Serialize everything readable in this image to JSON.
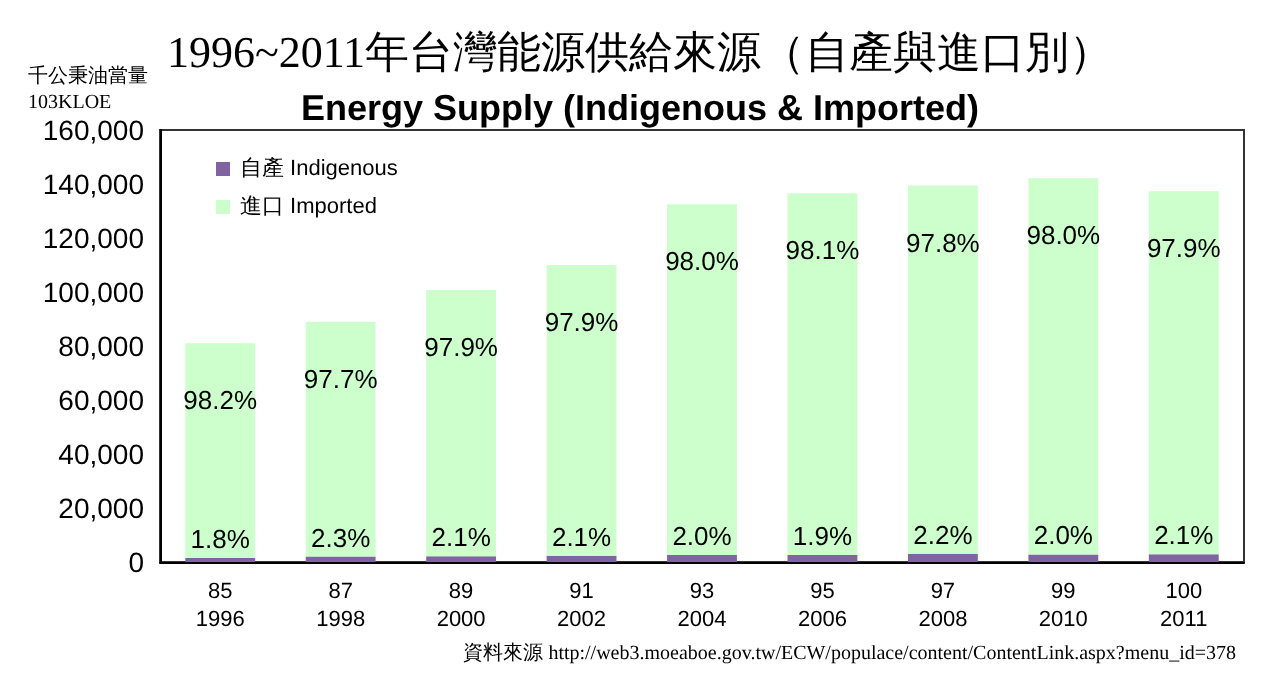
{
  "chart_data": {
    "type": "bar",
    "title": "1996~2011年台灣能源供給來源（自產與進口別）",
    "subtitle": "Energy Supply (Indigenous & Imported)",
    "ylabel": "千公秉油當量\n103KLOE",
    "categories": [
      "85\n1996",
      "87\n1998",
      "89\n2000",
      "91\n2002",
      "93\n2004",
      "95\n2006",
      "97\n2008",
      "99\n2010",
      "100\n2011"
    ],
    "stacked": true,
    "series": [
      {
        "name": "自產 Indigenous",
        "color": "#8064a2",
        "values": [
          1500,
          2000,
          2100,
          2300,
          2600,
          2600,
          3100,
          2800,
          2900
        ]
      },
      {
        "name": "進口 Imported",
        "color": "#ccffcc",
        "values": [
          79500,
          87000,
          98600,
          107700,
          129900,
          134000,
          136300,
          139300,
          134400
        ]
      }
    ],
    "ylim": [
      0,
      160000
    ],
    "yticks": [
      0,
      {
        "value": 20000,
        "label": "20,000"
      },
      {
        "value": 40000,
        "label": "40,000"
      },
      {
        "value": 60000,
        "label": "60,000"
      },
      {
        "value": 80000,
        "label": "80,000"
      },
      {
        "value": 100000,
        "label": "100,000"
      },
      {
        "value": 120000,
        "label": "120,000"
      },
      {
        "value": 140000,
        "label": "140,000"
      },
      {
        "value": 160000,
        "label": "160,000"
      }
    ],
    "grid": false,
    "legend": "top left",
    "annotations": [
      {
        "text": "1.8%",
        "x": "85\n1996",
        "y": 1500
      },
      {
        "text": "2.3%",
        "x": "87\n1998",
        "y": 2000
      },
      {
        "text": "2.1%",
        "x": "89\n2000",
        "y": 2100
      },
      {
        "text": "2.1%",
        "x": "91\n2002",
        "y": 2300
      },
      {
        "text": "2.0%",
        "x": "93\n2004",
        "y": 2600
      },
      {
        "text": "1.9%",
        "x": "95\n2006",
        "y": 2600
      },
      {
        "text": "2.2%",
        "x": "97\n2008",
        "y": 3100
      },
      {
        "text": "2.0%",
        "x": "99\n2010",
        "y": 2800
      },
      {
        "text": "2.1%",
        "x": "100\n2011",
        "y": 2900
      },
      {
        "text": "98.2%",
        "x": "85\n1996",
        "y": 81000
      },
      {
        "text": "97.7%",
        "x": "87\n1998",
        "y": 89000
      },
      {
        "text": "97.9%",
        "x": "89\n2000",
        "y": 100700
      },
      {
        "text": "97.9%",
        "x": "91\n2002",
        "y": 110000
      },
      {
        "text": "98.0%",
        "x": "93\n2004",
        "y": 132500
      },
      {
        "text": "98.1%",
        "x": "95\n2006",
        "y": 136600
      },
      {
        "text": "97.8%",
        "x": "97\n2008",
        "y": 139400
      },
      {
        "text": "98.0%",
        "x": "99\n2010",
        "y": 142100
      },
      {
        "text": "97.9%",
        "x": "100\n2011",
        "y": 137300
      },
      "資料來源 http://web3.moeaboe.gov.tw/ECW/populace/content/ContentLink.aspx?menu_id=378"
    ]
  }
}
